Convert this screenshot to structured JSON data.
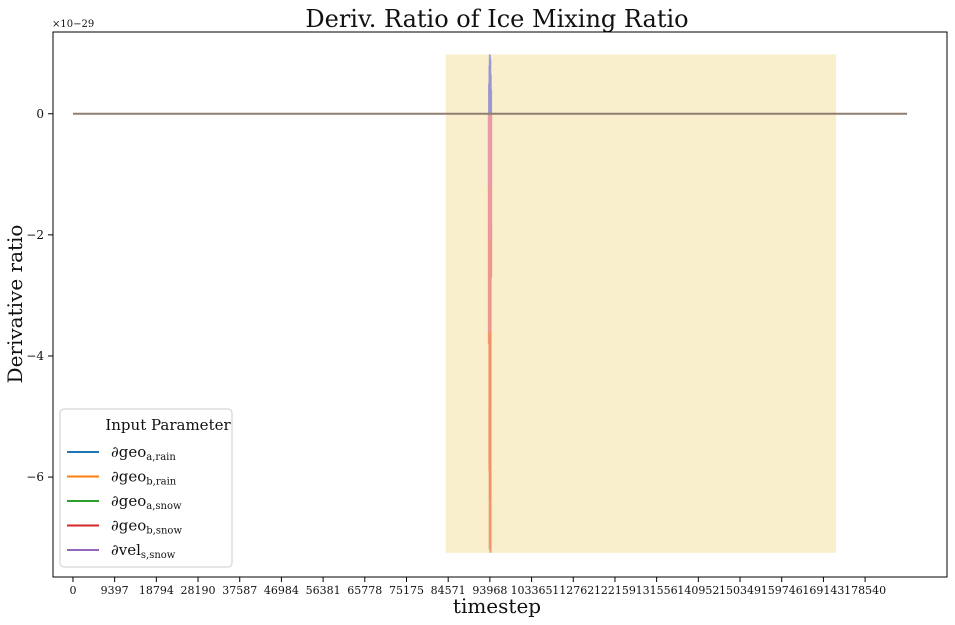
{
  "chart_data": {
    "type": "line",
    "title": "Deriv. Ratio of Ice Mixing Ratio",
    "xlabel": "timestep",
    "ylabel": "Derivative ratio",
    "y_offset_label": "×10−29",
    "x_ticks": [
      0,
      9397,
      18794,
      28190,
      37587,
      46984,
      56381,
      65778,
      75175,
      84571,
      93968,
      103365,
      112762,
      122159,
      131556,
      140952,
      150349,
      159746,
      169143,
      178540
    ],
    "y_ticks": [
      0,
      -2,
      -4,
      -6
    ],
    "xlim": [
      -4500,
      197000
    ],
    "ylim": [
      -7.65,
      1.35
    ],
    "y_scale_exponent": -29,
    "grid": false,
    "legend_placement": "lower-left",
    "legend": {
      "title": "Input Parameter",
      "entries": [
        {
          "label": "∂geo",
          "sub": "a,rain",
          "color": "#1f77b4"
        },
        {
          "label": "∂geo",
          "sub": "b,rain",
          "color": "#ff7f0e"
        },
        {
          "label": "∂geo",
          "sub": "a,snow",
          "color": "#2ca02c"
        },
        {
          "label": "∂geo",
          "sub": "b,snow",
          "color": "#d62728"
        },
        {
          "label": "∂vel",
          "sub": "s,snow",
          "color": "#9467bd"
        }
      ]
    },
    "highlight_region": {
      "x": [
        84000,
        172000
      ],
      "y": [
        -7.25,
        0.98
      ],
      "color": "#f9efcc"
    },
    "baseline": {
      "x": [
        0,
        188000
      ],
      "y": 0,
      "color": "#8f7f70"
    },
    "series": [
      {
        "color": "#f0936a",
        "spike_x": [
          93750,
          93820,
          93880,
          93940,
          93990,
          94050,
          94110,
          94170,
          94240
        ],
        "spike_min": [
          -3.8,
          -2.9,
          -5.9,
          -7.2,
          -6.4,
          -4.8,
          -7.25,
          -2.4,
          -2.7
        ]
      },
      {
        "color": "#e69ab0",
        "spike_x": [
          93780,
          93900,
          94020,
          94140
        ],
        "spike_min": [
          -1.2,
          -3.6,
          -2.1,
          -1.8
        ]
      },
      {
        "color": "#9a97cf",
        "spike_x": [
          93800,
          93900,
          93970,
          94050,
          94140,
          94220
        ],
        "spike_max": [
          0.5,
          0.8,
          0.98,
          0.9,
          0.65,
          0.4
        ]
      }
    ]
  }
}
